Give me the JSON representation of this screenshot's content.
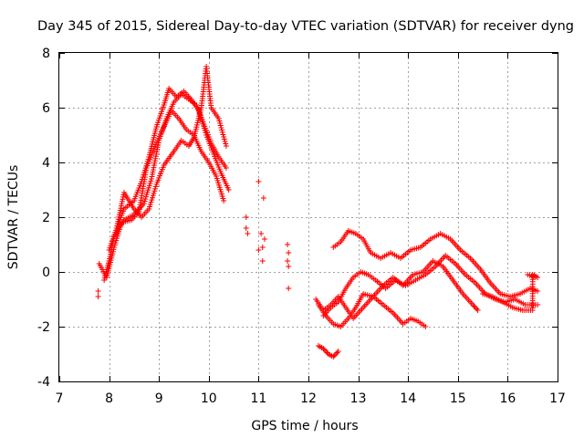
{
  "chart_data": {
    "type": "scatter",
    "title": "Day 345 of 2015, Sidereal Day-to-day VTEC variation (SDTVAR) for receiver dyng",
    "xlabel": "GPS time / hours",
    "ylabel": "SDTVAR / TECUs",
    "xlim": [
      7,
      17
    ],
    "ylim": [
      -4,
      8
    ],
    "xticks": [
      7,
      8,
      9,
      10,
      11,
      12,
      13,
      14,
      15,
      16,
      17
    ],
    "yticks": [
      -4,
      -2,
      0,
      2,
      4,
      6,
      8
    ],
    "grid": true,
    "marker": "+",
    "color": "#ff0000",
    "series": [
      {
        "name": "track-a",
        "points": [
          [
            7.9,
            -0.3
          ],
          [
            8.0,
            0.4
          ],
          [
            8.1,
            1.3
          ],
          [
            8.3,
            1.9
          ],
          [
            8.5,
            2.1
          ],
          [
            8.7,
            2.5
          ],
          [
            8.85,
            3.4
          ],
          [
            9.0,
            4.8
          ],
          [
            9.15,
            5.6
          ],
          [
            9.3,
            6.2
          ],
          [
            9.45,
            6.5
          ],
          [
            9.6,
            6.3
          ],
          [
            9.75,
            6.1
          ],
          [
            9.9,
            5.4
          ],
          [
            10.05,
            4.7
          ],
          [
            10.2,
            4.2
          ],
          [
            10.35,
            3.8
          ]
        ]
      },
      {
        "name": "track-b",
        "points": [
          [
            8.0,
            0.8
          ],
          [
            8.15,
            1.6
          ],
          [
            8.3,
            2.3
          ],
          [
            8.5,
            2.6
          ],
          [
            8.65,
            3.3
          ],
          [
            8.8,
            4.2
          ],
          [
            8.95,
            5.3
          ],
          [
            9.1,
            6.1
          ],
          [
            9.2,
            6.7
          ],
          [
            9.35,
            6.4
          ],
          [
            9.5,
            6.6
          ],
          [
            9.65,
            6.3
          ],
          [
            9.8,
            5.9
          ],
          [
            9.95,
            5.0
          ],
          [
            10.1,
            4.3
          ],
          [
            10.25,
            3.6
          ],
          [
            10.4,
            3.0
          ]
        ]
      },
      {
        "name": "track-c",
        "points": [
          [
            8.15,
            1.6
          ],
          [
            8.3,
            2.9
          ],
          [
            8.5,
            2.3
          ],
          [
            8.65,
            2.0
          ],
          [
            8.8,
            2.3
          ],
          [
            8.95,
            3.2
          ],
          [
            9.1,
            3.9
          ],
          [
            9.3,
            4.4
          ],
          [
            9.45,
            4.8
          ],
          [
            9.6,
            4.6
          ],
          [
            9.7,
            4.9
          ],
          [
            9.85,
            6.0
          ],
          [
            9.95,
            7.5
          ],
          [
            10.05,
            6.0
          ],
          [
            10.2,
            5.6
          ],
          [
            10.35,
            4.6
          ]
        ]
      },
      {
        "name": "track-d",
        "points": [
          [
            7.8,
            0.3
          ],
          [
            7.95,
            -0.2
          ],
          [
            8.1,
            0.9
          ],
          [
            8.25,
            1.8
          ],
          [
            8.45,
            1.9
          ],
          [
            8.6,
            2.2
          ],
          [
            8.75,
            3.8
          ],
          [
            8.9,
            4.5
          ],
          [
            9.05,
            5.1
          ],
          [
            9.25,
            5.9
          ],
          [
            9.4,
            5.6
          ],
          [
            9.55,
            5.2
          ],
          [
            9.7,
            5.0
          ],
          [
            9.85,
            4.4
          ],
          [
            10.0,
            4.0
          ],
          [
            10.15,
            3.5
          ],
          [
            10.3,
            2.6
          ]
        ]
      },
      {
        "name": "scattered-midday",
        "points": [
          [
            7.78,
            -0.7
          ],
          [
            7.78,
            -0.9
          ],
          [
            10.75,
            2.0
          ],
          [
            10.75,
            1.6
          ],
          [
            10.78,
            1.4
          ],
          [
            11.0,
            3.3
          ],
          [
            11.05,
            1.4
          ],
          [
            11.08,
            0.9
          ],
          [
            11.0,
            0.8
          ],
          [
            11.1,
            2.7
          ],
          [
            11.08,
            0.4
          ],
          [
            11.12,
            1.2
          ],
          [
            11.58,
            1.0
          ],
          [
            11.6,
            0.7
          ],
          [
            11.58,
            0.4
          ],
          [
            11.6,
            0.2
          ],
          [
            11.6,
            -0.6
          ]
        ]
      },
      {
        "name": "evening-a",
        "points": [
          [
            12.5,
            0.9
          ],
          [
            12.65,
            1.1
          ],
          [
            12.8,
            1.5
          ],
          [
            12.95,
            1.4
          ],
          [
            13.1,
            1.2
          ],
          [
            13.25,
            0.7
          ],
          [
            13.45,
            0.5
          ],
          [
            13.65,
            0.7
          ],
          [
            13.85,
            0.5
          ],
          [
            14.05,
            0.8
          ],
          [
            14.25,
            0.9
          ],
          [
            14.45,
            1.2
          ],
          [
            14.65,
            1.4
          ],
          [
            14.85,
            1.2
          ],
          [
            15.05,
            0.8
          ],
          [
            15.25,
            0.5
          ],
          [
            15.45,
            0.1
          ],
          [
            15.65,
            -0.4
          ],
          [
            15.85,
            -0.8
          ],
          [
            16.05,
            -0.9
          ],
          [
            16.25,
            -0.8
          ],
          [
            16.45,
            -0.6
          ],
          [
            16.6,
            -0.7
          ]
        ]
      },
      {
        "name": "evening-b",
        "points": [
          [
            12.3,
            -1.6
          ],
          [
            12.45,
            -1.3
          ],
          [
            12.6,
            -1.1
          ],
          [
            12.75,
            -0.6
          ],
          [
            12.9,
            -0.2
          ],
          [
            13.05,
            0.0
          ],
          [
            13.2,
            -0.1
          ],
          [
            13.35,
            -0.3
          ],
          [
            13.55,
            -0.6
          ],
          [
            13.75,
            -0.3
          ],
          [
            13.95,
            -0.5
          ],
          [
            14.15,
            -0.3
          ],
          [
            14.35,
            -0.1
          ],
          [
            14.55,
            0.2
          ],
          [
            14.75,
            0.6
          ],
          [
            14.95,
            0.3
          ],
          [
            15.15,
            -0.1
          ],
          [
            15.35,
            -0.4
          ],
          [
            15.55,
            -0.8
          ],
          [
            15.75,
            -1.0
          ],
          [
            15.95,
            -1.1
          ],
          [
            16.15,
            -1.0
          ],
          [
            16.35,
            -1.2
          ],
          [
            16.6,
            -1.2
          ]
        ]
      },
      {
        "name": "evening-c",
        "points": [
          [
            12.2,
            -1.2
          ],
          [
            12.35,
            -1.6
          ],
          [
            12.5,
            -1.9
          ],
          [
            12.65,
            -2.0
          ],
          [
            12.8,
            -1.7
          ],
          [
            12.95,
            -1.3
          ],
          [
            13.1,
            -0.8
          ],
          [
            13.3,
            -0.9
          ],
          [
            13.5,
            -1.2
          ],
          [
            13.7,
            -1.5
          ],
          [
            13.9,
            -1.9
          ],
          [
            14.05,
            -1.7
          ],
          [
            14.2,
            -1.8
          ],
          [
            14.35,
            -2.0
          ]
        ]
      },
      {
        "name": "evening-d",
        "points": [
          [
            12.15,
            -1.0
          ],
          [
            12.3,
            -1.4
          ],
          [
            12.45,
            -1.2
          ],
          [
            12.6,
            -0.9
          ],
          [
            12.75,
            -1.3
          ],
          [
            12.9,
            -1.7
          ],
          [
            13.1,
            -1.3
          ],
          [
            13.3,
            -0.9
          ],
          [
            13.5,
            -0.5
          ],
          [
            13.7,
            -0.2
          ],
          [
            13.9,
            -0.5
          ],
          [
            14.1,
            -0.1
          ],
          [
            14.3,
            0.0
          ],
          [
            14.5,
            0.4
          ],
          [
            14.7,
            0.2
          ],
          [
            14.9,
            -0.3
          ],
          [
            15.1,
            -0.8
          ],
          [
            15.3,
            -1.2
          ],
          [
            15.4,
            -1.4
          ]
        ]
      },
      {
        "name": "evening-e",
        "points": [
          [
            12.2,
            -2.7
          ],
          [
            12.3,
            -2.8
          ],
          [
            12.4,
            -3.0
          ],
          [
            12.5,
            -3.1
          ],
          [
            12.6,
            -2.9
          ]
        ]
      },
      {
        "name": "evening-f",
        "points": [
          [
            15.5,
            -0.8
          ],
          [
            15.7,
            -0.9
          ],
          [
            15.9,
            -1.1
          ],
          [
            16.1,
            -1.3
          ],
          [
            16.3,
            -1.4
          ],
          [
            16.5,
            -1.4
          ],
          [
            16.5,
            -0.1
          ],
          [
            16.6,
            -0.2
          ],
          [
            16.4,
            -0.1
          ]
        ]
      }
    ]
  }
}
